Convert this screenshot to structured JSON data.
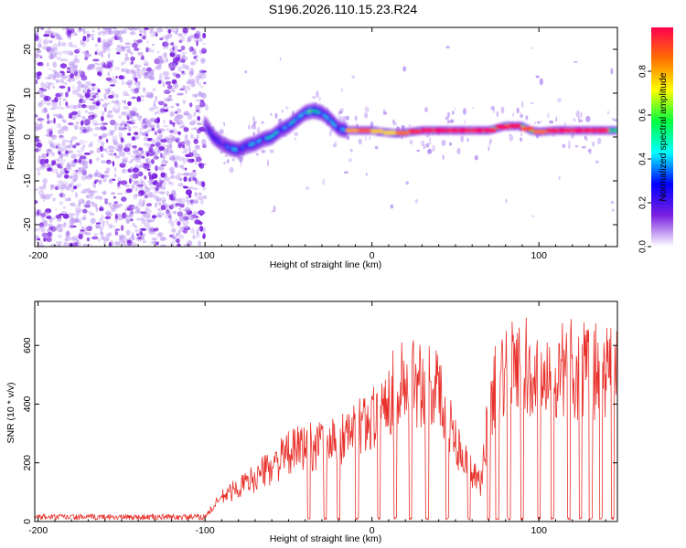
{
  "title": "S196.2026.110.15.23.R24",
  "colors": {
    "background": "#ffffff",
    "axis": "#000000",
    "snr_line": "#e8302a",
    "noise": "#7a1fe0"
  },
  "chart_data": [
    {
      "type": "heatmap",
      "name": "spectrogram",
      "xlabel": "Height of straight line (km)",
      "ylabel": "Frequency (Hz)",
      "xlim": [
        -202,
        147
      ],
      "ylim": [
        -25,
        25
      ],
      "xticks": [
        -200,
        -100,
        0,
        100
      ],
      "xtick_labels": [
        "-200",
        "-100",
        "0",
        "100"
      ],
      "yticks": [
        -20,
        -10,
        0,
        10,
        20
      ],
      "ytick_labels": [
        "-20",
        "-10",
        "0",
        "10",
        "20"
      ],
      "colorbar": {
        "label": "Normalized spectral amplitude",
        "range": [
          0,
          1
        ],
        "ticks": [
          0.0,
          0.2,
          0.4,
          0.6,
          0.8
        ],
        "tick_labels": [
          "0.0",
          "0.2",
          "0.4",
          "0.6",
          "0.8"
        ],
        "stops": [
          "#ffffff",
          "#7a1fe0",
          "#0000ff",
          "#00ffff",
          "#00ff40",
          "#ffff00",
          "#ff7000",
          "#ff0050"
        ]
      },
      "noise_region_x": [
        -202,
        -100
      ],
      "ridge": {
        "x": [
          -100,
          -95,
          -90,
          -85,
          -80,
          -75,
          -70,
          -65,
          -60,
          -55,
          -50,
          -45,
          -40,
          -35,
          -30,
          -25,
          -20,
          -15,
          -10,
          -5,
          0,
          5,
          10,
          15,
          20,
          30,
          40,
          50,
          60,
          70,
          80,
          90,
          95,
          100,
          110,
          120,
          130,
          140,
          147
        ],
        "freq": [
          3,
          0,
          -1.5,
          -2.5,
          -3,
          -2,
          -1.5,
          -0.5,
          0,
          1.5,
          2.5,
          4,
          5.5,
          6,
          5.5,
          4,
          2,
          1.5,
          1.5,
          1.5,
          1.5,
          1.2,
          1,
          0.8,
          1,
          1.5,
          1.5,
          1.5,
          1.5,
          1.5,
          2.5,
          2.5,
          1.5,
          1.2,
          1.5,
          1.5,
          1.5,
          1.5,
          1.5
        ],
        "amp": [
          0.3,
          0.35,
          0.4,
          0.45,
          0.5,
          0.45,
          0.5,
          0.55,
          0.6,
          0.55,
          0.5,
          0.55,
          0.65,
          0.7,
          0.65,
          0.5,
          0.5,
          0.6,
          0.7,
          0.75,
          0.65,
          0.6,
          0.6,
          0.65,
          0.75,
          0.85,
          0.9,
          0.85,
          0.9,
          0.85,
          0.9,
          0.85,
          0.7,
          0.7,
          0.85,
          0.9,
          0.85,
          0.8,
          0.7
        ]
      }
    },
    {
      "type": "line",
      "name": "snr",
      "xlabel": "Height of straight line (km)",
      "ylabel": "SNR (10 * v/v)",
      "xlim": [
        -202,
        147
      ],
      "ylim": [
        0,
        750
      ],
      "xticks": [
        -200,
        -100,
        0,
        100
      ],
      "xtick_labels": [
        "-200",
        "-100",
        "0",
        "100"
      ],
      "yticks": [
        0,
        200,
        400,
        600
      ],
      "ytick_labels": [
        "0",
        "200",
        "400",
        "600"
      ],
      "series": [
        {
          "name": "SNR",
          "envelope_x": [
            -202,
            -150,
            -100,
            -95,
            -90,
            -85,
            -80,
            -70,
            -60,
            -50,
            -40,
            -30,
            -20,
            -10,
            0,
            10,
            20,
            30,
            35,
            40,
            45,
            50,
            55,
            60,
            65,
            70,
            75,
            80,
            90,
            100,
            110,
            120,
            130,
            140,
            147
          ],
          "envelope_y": [
            15,
            15,
            20,
            60,
            100,
            120,
            140,
            180,
            230,
            280,
            310,
            320,
            330,
            380,
            430,
            520,
            580,
            580,
            570,
            530,
            440,
            340,
            260,
            200,
            150,
            450,
            600,
            620,
            630,
            640,
            620,
            630,
            620,
            610,
            610
          ],
          "dropouts_x": [
            -38,
            -28,
            -20,
            -9,
            4,
            14,
            23,
            33,
            45,
            58,
            70,
            75,
            82,
            90,
            100,
            108,
            118,
            125,
            131,
            137,
            144
          ]
        }
      ]
    }
  ]
}
